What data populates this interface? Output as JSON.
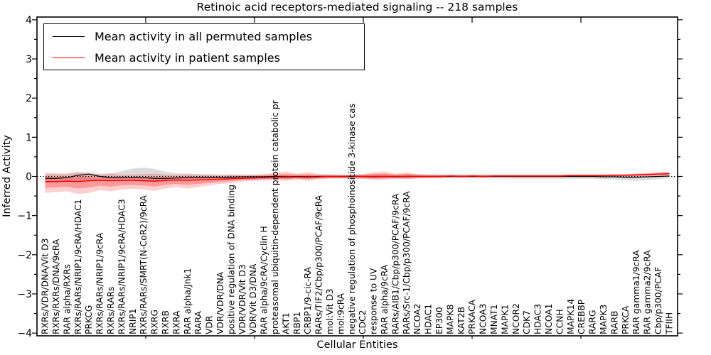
{
  "chart_data": {
    "type": "line",
    "title": "Retinoic acid receptors-mediated signaling -- 218 samples",
    "xlabel": "Cellular Entities",
    "ylabel": "Inferred Activity",
    "ylim": [
      -4,
      4
    ],
    "yticks": [
      4,
      3,
      2,
      1,
      0,
      -1,
      -2,
      -3,
      -4
    ],
    "grid": false,
    "zero_line": true,
    "legend_position": "upper left",
    "legend": [
      {
        "label": "Mean activity in all permuted samples",
        "color": "#000000"
      },
      {
        "label": "Mean activity in patient samples",
        "color": "#ff0000"
      }
    ],
    "categories": [
      "RXRs/VDR/DNA/Vit D3",
      "RXRs/RXRs/DNA/9cRA",
      "RAR alpha/RXRs",
      "RXRs/RARs/NRIP1/9cRA/HDAC1",
      "PRKCG",
      "RXRs/RARs/NRIP1/9cRA",
      "RXRs/RARs",
      "RXRs/RARs/NRIP1/9cRA/HDAC3",
      "NRIP1",
      "RXRs/RARs/SMRT(N-CoR2)/9cRA",
      "RXRG",
      "RXRB",
      "RXRA",
      "RAR alpha/Jnk1",
      "RARA",
      "VDR",
      "VDR/VDR/DNA",
      "positive regulation of DNA binding",
      "VDR/VDR/Vit D3",
      "VDR/Vit D3/DNA",
      "RAR alpha/9cRA/Cyclin H",
      "proteasomal ubiquitin-dependent protein catabolic pr",
      "AKT1",
      "RBP1",
      "CRBP1/9-cic-RA",
      "RARs/TIF2/Cbp/p300/PCAF/9cRA",
      "mol:Vit D3",
      "mol:9cRA",
      "negative regulation of phosphoinositide 3-kinase cas",
      "CDC2",
      "response to UV",
      "RAR alpha/9cRA",
      "RARs/AIB1/Cbp/p300/PCAF/9cRA",
      "RARs/Src-1/Cbp/p300/PCAF/9cRA",
      "NCOA2",
      "HDAC1",
      "EP300",
      "MAPK8",
      "KAT2B",
      "PRKACA",
      "NCOA3",
      "MNAT1",
      "MAPK1",
      "NCOR2",
      "CDK7",
      "HDAC3",
      "NCOA1",
      "CCNH",
      "MAPK14",
      "CREBBP",
      "RARG",
      "MAPK3",
      "RARB",
      "PRKCA",
      "RAR gamma1/9cRA",
      "RAR gamma2/9cRA",
      "Cbp/p300/PCAF",
      "TFIIH"
    ],
    "series": [
      {
        "name": "Mean activity in all permuted samples",
        "color": "#000000",
        "values": [
          -0.05,
          -0.05,
          -0.03,
          0.03,
          0.06,
          0.0,
          -0.03,
          -0.03,
          -0.02,
          -0.03,
          -0.05,
          -0.05,
          -0.04,
          -0.03,
          -0.03,
          -0.02,
          -0.02,
          -0.02,
          -0.01,
          -0.01,
          -0.01,
          0.0,
          -0.01,
          0.0,
          -0.01,
          0.0,
          0.0,
          -0.01,
          0.0,
          0.0,
          -0.01,
          0.0,
          -0.01,
          0.0,
          0.0,
          0.0,
          0.0,
          0.0,
          0.0,
          0.0,
          0.0,
          0.0,
          0.0,
          0.0,
          0.0,
          0.0,
          0.0,
          0.0,
          0.0,
          0.0,
          0.0,
          -0.01,
          -0.01,
          -0.02,
          -0.02,
          -0.01,
          0.0,
          0.01
        ]
      },
      {
        "name": "Mean activity in patient samples",
        "color": "#ff0000",
        "values": [
          -0.13,
          -0.13,
          -0.12,
          -0.13,
          -0.11,
          -0.1,
          -0.11,
          -0.1,
          -0.1,
          -0.11,
          -0.12,
          -0.1,
          -0.09,
          -0.1,
          -0.09,
          -0.08,
          -0.07,
          -0.06,
          -0.05,
          -0.04,
          -0.03,
          -0.02,
          -0.02,
          -0.01,
          -0.02,
          -0.01,
          0.0,
          0.0,
          0.0,
          0.0,
          0.0,
          0.0,
          0.0,
          0.0,
          0.0,
          0.0,
          0.0,
          0.01,
          0.0,
          0.01,
          0.0,
          0.01,
          0.01,
          0.01,
          0.01,
          0.01,
          0.01,
          0.01,
          0.02,
          0.02,
          0.02,
          0.02,
          0.03,
          0.03,
          0.04,
          0.05,
          0.06,
          0.07
        ]
      }
    ],
    "bands": [
      {
        "name": "permuted-samples-std-band",
        "color": "rgba(130,130,130,0.28)",
        "upper": [
          0.06,
          0.06,
          0.07,
          0.1,
          0.11,
          0.07,
          0.08,
          0.14,
          0.2,
          0.23,
          0.19,
          0.12,
          0.08,
          0.07,
          0.06,
          0.06,
          0.05,
          0.05,
          0.05,
          0.05,
          0.05,
          0.05,
          0.05,
          0.05,
          0.05,
          0.05,
          0.05,
          0.05,
          0.05,
          0.05,
          0.06,
          0.06,
          0.05,
          0.06,
          0.05,
          0.05,
          0.05,
          0.05,
          0.05,
          0.05,
          0.05,
          0.05,
          0.05,
          0.05,
          0.05,
          0.05,
          0.05,
          0.05,
          0.05,
          0.05,
          0.05,
          0.05,
          0.05,
          0.05,
          0.06,
          0.06,
          0.07,
          0.08
        ],
        "lower": [
          -0.16,
          -0.15,
          -0.14,
          -0.12,
          -0.1,
          -0.11,
          -0.12,
          -0.12,
          -0.12,
          -0.13,
          -0.14,
          -0.13,
          -0.12,
          -0.11,
          -0.1,
          -0.09,
          -0.08,
          -0.08,
          -0.07,
          -0.07,
          -0.07,
          -0.06,
          -0.06,
          -0.06,
          -0.06,
          -0.06,
          -0.05,
          -0.05,
          -0.06,
          -0.06,
          -0.06,
          -0.06,
          -0.05,
          -0.06,
          -0.05,
          -0.05,
          -0.05,
          -0.05,
          -0.05,
          -0.05,
          -0.05,
          -0.05,
          -0.05,
          -0.06,
          -0.06,
          -0.06,
          -0.06,
          -0.06,
          -0.06,
          -0.06,
          -0.06,
          -0.07,
          -0.08,
          -0.1,
          -0.11,
          -0.09,
          -0.07,
          -0.05
        ]
      },
      {
        "name": "patient-samples-std-band",
        "color": "rgba(255,30,30,0.22)",
        "upper": [
          0.1,
          0.08,
          0.07,
          0.11,
          0.07,
          0.05,
          0.07,
          0.05,
          0.05,
          0.06,
          0.07,
          0.05,
          0.04,
          0.06,
          0.05,
          0.04,
          0.03,
          0.05,
          0.03,
          0.04,
          0.06,
          0.09,
          0.13,
          0.07,
          0.11,
          0.06,
          0.05,
          0.04,
          0.05,
          0.06,
          0.11,
          0.13,
          0.07,
          0.11,
          0.06,
          0.05,
          0.04,
          0.04,
          0.04,
          0.04,
          0.04,
          0.04,
          0.04,
          0.04,
          0.04,
          0.04,
          0.04,
          0.04,
          0.05,
          0.05,
          0.05,
          0.05,
          0.06,
          0.06,
          0.08,
          0.09,
          0.11,
          0.12
        ],
        "lower": [
          -0.42,
          -0.4,
          -0.38,
          -0.45,
          -0.42,
          -0.35,
          -0.38,
          -0.33,
          -0.31,
          -0.33,
          -0.37,
          -0.31,
          -0.27,
          -0.31,
          -0.27,
          -0.23,
          -0.19,
          -0.17,
          -0.13,
          -0.11,
          -0.1,
          -0.1,
          -0.11,
          -0.08,
          -0.11,
          -0.07,
          -0.06,
          -0.05,
          -0.06,
          -0.06,
          -0.09,
          -0.08,
          -0.06,
          -0.07,
          -0.05,
          -0.04,
          -0.04,
          -0.03,
          -0.03,
          -0.03,
          -0.03,
          -0.03,
          -0.03,
          -0.03,
          -0.03,
          -0.03,
          -0.03,
          -0.03,
          -0.02,
          -0.02,
          -0.02,
          -0.02,
          -0.01,
          -0.01,
          0.0,
          0.01,
          0.02,
          0.03
        ]
      }
    ]
  }
}
